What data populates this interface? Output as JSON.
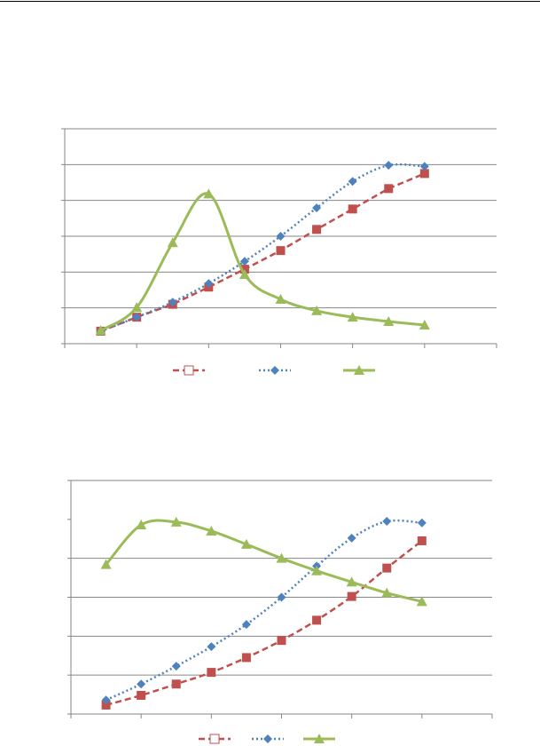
{
  "chart_data": [
    {
      "type": "line",
      "title": "",
      "xlabel": "",
      "ylabel": "",
      "xlim": [
        0,
        6
      ],
      "ylim": [
        0,
        6
      ],
      "grid": true,
      "legend": "bottom",
      "x": [
        0.5,
        1.0,
        1.5,
        2.0,
        2.5,
        3.0,
        3.5,
        4.0,
        4.5,
        5.0
      ],
      "series": [
        {
          "name": "",
          "color": "#c0504d",
          "marker": "square",
          "dash": "dashed",
          "smooth": false,
          "values": [
            0.35,
            0.74,
            1.1,
            1.58,
            2.08,
            2.6,
            3.19,
            3.76,
            4.33,
            4.75
          ]
        },
        {
          "name": "",
          "color": "#4f81bd",
          "marker": "diamond",
          "dash": "dotted",
          "smooth": true,
          "values": [
            0.35,
            0.74,
            1.16,
            1.68,
            2.3,
            3.0,
            3.79,
            4.53,
            4.98,
            4.95
          ]
        },
        {
          "name": "",
          "color": "#9bbb59",
          "marker": "triangle",
          "dash": "solid",
          "smooth": true,
          "values": [
            0.37,
            1.01,
            2.82,
            4.18,
            1.93,
            1.24,
            0.92,
            0.74,
            0.62,
            0.52
          ]
        }
      ]
    },
    {
      "type": "line",
      "title": "",
      "xlabel": "",
      "ylabel": "",
      "xlim": [
        0,
        6
      ],
      "ylim": [
        0,
        6
      ],
      "gridlines": [
        1,
        2,
        3,
        4,
        6
      ],
      "grid": true,
      "legend": "bottom",
      "x": [
        0.5,
        1.0,
        1.5,
        2.0,
        2.5,
        3.0,
        3.5,
        4.0,
        4.5,
        5.0
      ],
      "series": [
        {
          "name": "",
          "color": "#c0504d",
          "marker": "square",
          "dash": "dashed",
          "smooth": true,
          "values": [
            0.23,
            0.48,
            0.77,
            1.07,
            1.45,
            1.89,
            2.41,
            3.02,
            3.75,
            4.45
          ]
        },
        {
          "name": "",
          "color": "#4f81bd",
          "marker": "diamond",
          "dash": "dotted",
          "smooth": true,
          "values": [
            0.36,
            0.77,
            1.23,
            1.73,
            2.3,
            3.0,
            3.8,
            4.52,
            4.95,
            4.91
          ]
        },
        {
          "name": "",
          "color": "#9bbb59",
          "marker": "triangle",
          "dash": "solid",
          "smooth": true,
          "values": [
            3.84,
            4.86,
            4.93,
            4.7,
            4.36,
            4.0,
            3.68,
            3.39,
            3.11,
            2.89
          ]
        }
      ]
    }
  ]
}
